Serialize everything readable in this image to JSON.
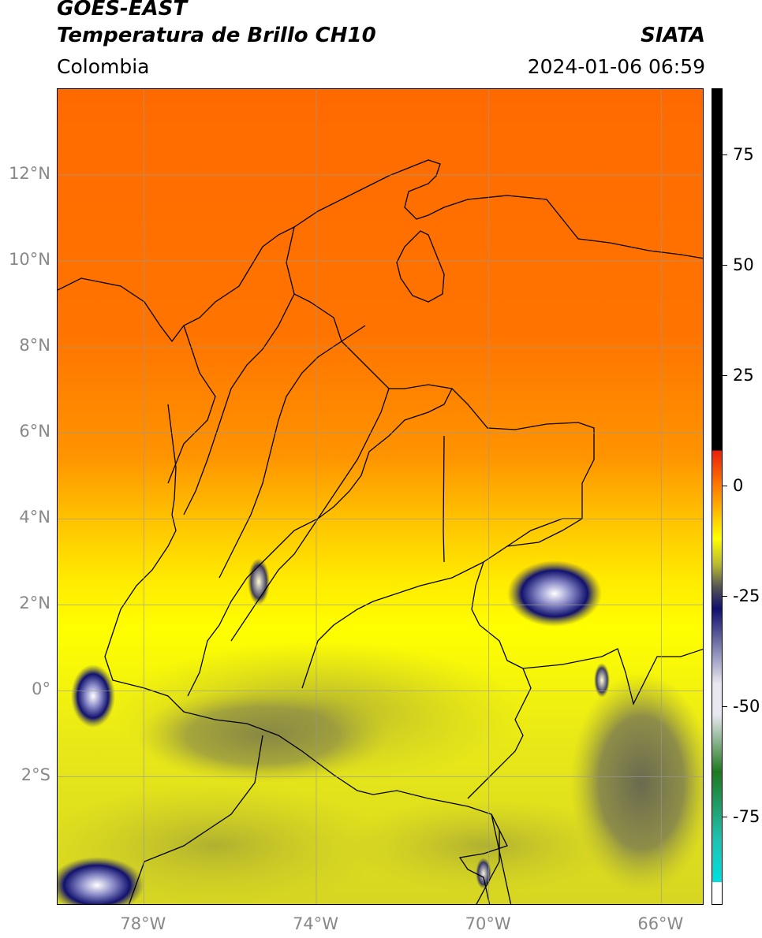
{
  "header": {
    "title_line1": "GOES-EAST",
    "title_line2": "Temperatura de Brillo CH10",
    "organization": "SIATA",
    "region": "Colombia",
    "datetime": "2024-01-06 06:59"
  },
  "map": {
    "lon_range": [
      -80,
      -65
    ],
    "lat_range": [
      -5,
      14
    ],
    "lat_ticks": [
      {
        "value": 12,
        "label": "12°N"
      },
      {
        "value": 10,
        "label": "10°N"
      },
      {
        "value": 8,
        "label": "8°N"
      },
      {
        "value": 6,
        "label": "6°N"
      },
      {
        "value": 4,
        "label": "4°N"
      },
      {
        "value": 2,
        "label": "2°N"
      },
      {
        "value": 0,
        "label": "0°"
      },
      {
        "value": -2,
        "label": "2°S"
      }
    ],
    "lon_ticks": [
      {
        "value": -78,
        "label": "78°W"
      },
      {
        "value": -74,
        "label": "74°W"
      },
      {
        "value": -70,
        "label": "70°W"
      },
      {
        "value": -66,
        "label": "66°W"
      }
    ],
    "grid": true
  },
  "colorbar": {
    "range": [
      -95,
      90
    ],
    "ticks": [
      {
        "value": 75,
        "label": "75"
      },
      {
        "value": 50,
        "label": "50"
      },
      {
        "value": 25,
        "label": "25"
      },
      {
        "value": 0,
        "label": "0"
      },
      {
        "value": -25,
        "label": "-25"
      },
      {
        "value": -50,
        "label": "-50"
      },
      {
        "value": -75,
        "label": "-75"
      }
    ],
    "colors": {
      "top_black": "#000000",
      "red": "#e8200a",
      "orange": "#ff7a00",
      "yellow": "#ffff00",
      "olive": "#b8b830",
      "grey": "#555555",
      "navy": "#10106e",
      "light": "#e8e8f0",
      "green": "#1e7a1e",
      "teal": "#20c0b0",
      "cyan": "#00e0e0",
      "bottom_white": "#ffffff"
    }
  }
}
